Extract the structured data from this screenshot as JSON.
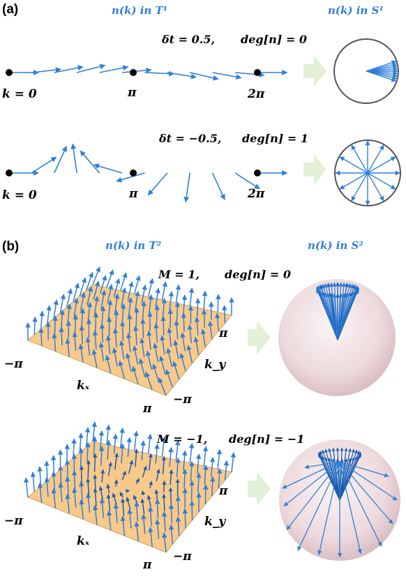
{
  "panel_a": {
    "tag": "(a)",
    "title_left": "n(k) in T¹",
    "title_right": "n(k) in S¹",
    "row1": {
      "eq": "δt = 0.5,",
      "deg": "deg[n] = 0",
      "k0": "k = 0",
      "kpi": "π",
      "k2pi": "2π"
    },
    "row2": {
      "eq": "δt = −0.5,",
      "deg": "deg[n] = 1",
      "k0": "k = 0",
      "kpi": "π",
      "k2pi": "2π"
    }
  },
  "panel_b": {
    "tag": "(b)",
    "title_left": "n(k) in T²",
    "title_right": "n(k) in S²",
    "row1": {
      "eq": "M = 1,",
      "deg": "deg[n] = 0",
      "neg_pi_left": "−π",
      "pi_right": "π",
      "kx": "kₓ",
      "ky": "k_y",
      "pi_bottom": "π",
      "neg_pi_bottom": "−π"
    },
    "row2": {
      "eq": "M = −1,",
      "deg": "deg[n] = −1",
      "neg_pi_left": "−π",
      "pi_right": "π",
      "kx": "kₓ",
      "ky": "k_y",
      "pi_bottom": "π",
      "neg_pi_bottom": "−π"
    }
  },
  "colors": {
    "arrow": "#2f7fd9",
    "arrow_dark": "#1a5db0",
    "plane": "#f9c98a",
    "sphere": "#efd9dc",
    "flow_arrow": "#e2f0d8"
  }
}
